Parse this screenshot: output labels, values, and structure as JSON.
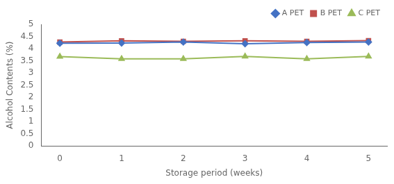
{
  "chart_data": {
    "type": "line",
    "x": [
      0,
      1,
      2,
      3,
      4,
      5
    ],
    "series": [
      {
        "name": "A PET",
        "color": "#4472C4",
        "marker": "diamond",
        "values": [
          4.22,
          4.23,
          4.27,
          4.2,
          4.25,
          4.27
        ]
      },
      {
        "name": "B PET",
        "color": "#C0504D",
        "marker": "square",
        "values": [
          4.27,
          4.32,
          4.3,
          4.32,
          4.3,
          4.33
        ]
      },
      {
        "name": "C PET",
        "color": "#9BBB59",
        "marker": "triangle-up",
        "values": [
          3.67,
          3.58,
          3.58,
          3.68,
          3.58,
          3.68
        ]
      }
    ],
    "xlabel": "Storage period (weeks)",
    "ylabel": "Alcohol Contents (%)",
    "xlim": [
      -0.3,
      5.3
    ],
    "xticks": [
      0,
      1,
      2,
      3,
      4,
      5
    ],
    "ylim": [
      0,
      5
    ],
    "yticks": [
      0,
      0.5,
      1,
      1.5,
      2,
      2.5,
      3,
      3.5,
      4,
      4.5,
      5
    ],
    "grid": false,
    "legend": "upper right"
  }
}
